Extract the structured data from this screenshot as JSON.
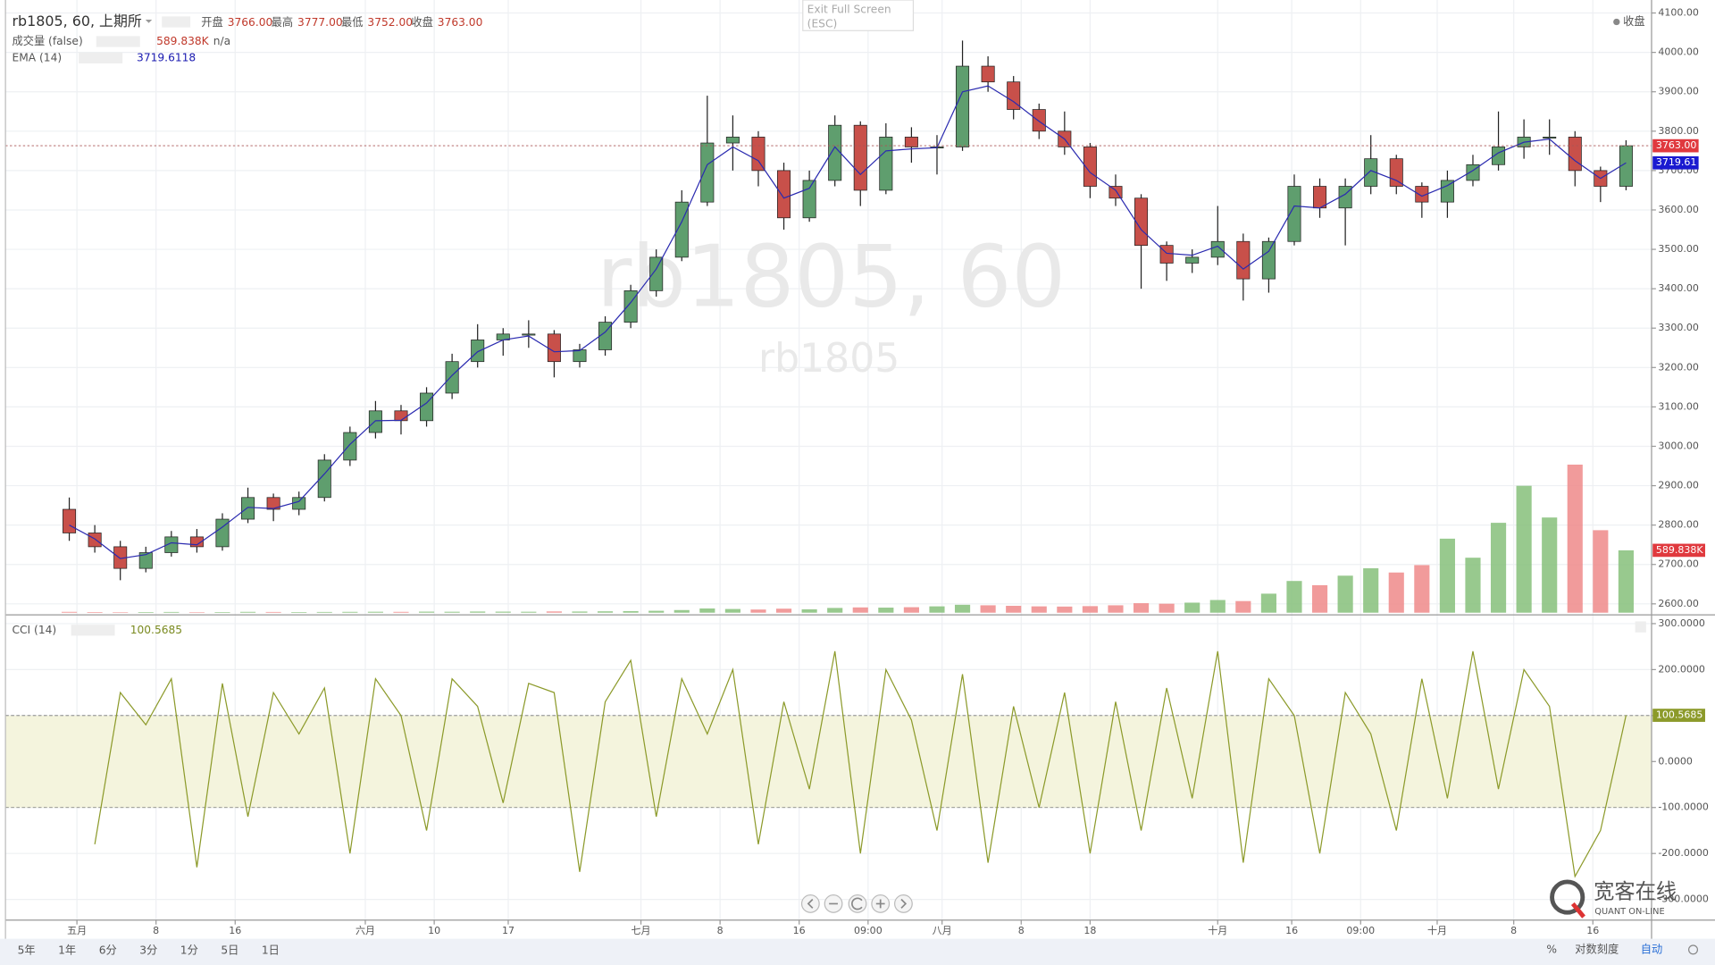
{
  "header": {
    "symbol": "rb1805, 60, 上期所",
    "ohlc": [
      [
        "开盘",
        "3766.00"
      ],
      [
        "最高",
        "3777.00"
      ],
      [
        "最低",
        "3752.00"
      ],
      [
        "收盘",
        "3763.00"
      ]
    ],
    "volume_title": "成交量 (false)",
    "volume_value": "589.838K",
    "volume_extra": "n/a",
    "ema_title": "EMA (14)",
    "ema_value": "3719.6118",
    "cci_title": "CCI (14)",
    "cci_value": "100.5685",
    "exit_fullscreen": "Exit Full Screen",
    "exit_key": "(ESC)",
    "close_toggle": "收盘",
    "watermark": "rb1805, 60",
    "watermark_sub": "rb1805"
  },
  "toolbar": {
    "ranges": [
      "5年",
      "1年",
      "6分",
      "3分",
      "1分",
      "5日",
      "1日"
    ],
    "percent": "%",
    "log": "对数刻度",
    "auto": "自动"
  },
  "logo": {
    "name": "宽客在线",
    "sub": "QUANT ON-LINE"
  },
  "chart_data": {
    "type": "candlestick",
    "up_color": "#5f9e6e",
    "down_color": "#c8504a",
    "xlim": [
      -2.5,
      62
    ],
    "ylim": [
      2572,
      4133
    ],
    "grid": true,
    "x": [
      0,
      1,
      2,
      3,
      4,
      5,
      6,
      7,
      8,
      9,
      10,
      11,
      12,
      13,
      14,
      15,
      16,
      17,
      18,
      19,
      20,
      21,
      22,
      23,
      24,
      25,
      26,
      27,
      28,
      29,
      30,
      31,
      32,
      33,
      34,
      35,
      36,
      37,
      38,
      39,
      40,
      41,
      42,
      43,
      44,
      45,
      46,
      47,
      48,
      49,
      50,
      51,
      52,
      53,
      54,
      55,
      56,
      57,
      58,
      59,
      60,
      61
    ],
    "xticks": [
      {
        "value": 0.3,
        "label": "五月"
      },
      {
        "value": 3.4,
        "label": "8"
      },
      {
        "value": 6.5,
        "label": "16"
      },
      {
        "value": 11.6,
        "label": "六月"
      },
      {
        "value": 14.3,
        "label": "10"
      },
      {
        "value": 17.2,
        "label": "17"
      },
      {
        "value": 22.4,
        "label": "七月"
      },
      {
        "value": 25.5,
        "label": "8"
      },
      {
        "value": 28.6,
        "label": "16"
      },
      {
        "value": 31.3,
        "label": "09:00"
      },
      {
        "value": 34.2,
        "label": "八月"
      },
      {
        "value": 37.3,
        "label": "8"
      },
      {
        "value": 40,
        "label": "18"
      },
      {
        "value": 45,
        "label": "十月"
      },
      {
        "value": 47.9,
        "label": "16"
      },
      {
        "value": 50.6,
        "label": "09:00"
      },
      {
        "value": 53.6,
        "label": "十月"
      },
      {
        "value": 56.6,
        "label": "8"
      },
      {
        "value": 59.7,
        "label": "16"
      }
    ],
    "yticks": [
      {
        "value": 2600,
        "label": "2600.00"
      },
      {
        "value": 2700,
        "label": "2700.00"
      },
      {
        "value": 2800,
        "label": "2800.00"
      },
      {
        "value": 2900,
        "label": "2900.00"
      },
      {
        "value": 3000,
        "label": "3000.00"
      },
      {
        "value": 3100,
        "label": "3100.00"
      },
      {
        "value": 3200,
        "label": "3200.00"
      },
      {
        "value": 3300,
        "label": "3300.00"
      },
      {
        "value": 3400,
        "label": "3400.00"
      },
      {
        "value": 3500,
        "label": "3500.00"
      },
      {
        "value": 3600,
        "label": "3600.00"
      },
      {
        "value": 3700,
        "label": "3700.00"
      },
      {
        "value": 3800,
        "label": "3800.00"
      },
      {
        "value": 3900,
        "label": "3900.00"
      },
      {
        "value": 4000,
        "label": "4000.00"
      },
      {
        "value": 4100,
        "label": "4100.00"
      }
    ],
    "candles": [
      [
        2840,
        2870,
        2760,
        2780
      ],
      [
        2780,
        2800,
        2730,
        2745
      ],
      [
        2745,
        2760,
        2660,
        2690
      ],
      [
        2690,
        2745,
        2680,
        2730
      ],
      [
        2730,
        2785,
        2720,
        2770
      ],
      [
        2770,
        2790,
        2730,
        2745
      ],
      [
        2745,
        2830,
        2735,
        2815
      ],
      [
        2815,
        2895,
        2805,
        2870
      ],
      [
        2870,
        2880,
        2810,
        2840
      ],
      [
        2840,
        2885,
        2825,
        2870
      ],
      [
        2870,
        2980,
        2860,
        2965
      ],
      [
        2965,
        3050,
        2950,
        3035
      ],
      [
        3035,
        3115,
        3020,
        3090
      ],
      [
        3090,
        3105,
        3030,
        3065
      ],
      [
        3065,
        3150,
        3050,
        3135
      ],
      [
        3135,
        3235,
        3120,
        3215
      ],
      [
        3215,
        3310,
        3200,
        3270
      ],
      [
        3270,
        3300,
        3230,
        3285
      ],
      [
        3285,
        3320,
        3250,
        3285
      ],
      [
        3285,
        3295,
        3175,
        3215
      ],
      [
        3215,
        3260,
        3200,
        3245
      ],
      [
        3245,
        3330,
        3230,
        3315
      ],
      [
        3315,
        3410,
        3300,
        3395
      ],
      [
        3395,
        3500,
        3380,
        3480
      ],
      [
        3480,
        3650,
        3470,
        3620
      ],
      [
        3620,
        3890,
        3610,
        3770
      ],
      [
        3770,
        3840,
        3700,
        3785
      ],
      [
        3785,
        3800,
        3660,
        3700
      ],
      [
        3700,
        3720,
        3550,
        3580
      ],
      [
        3580,
        3700,
        3570,
        3675
      ],
      [
        3675,
        3840,
        3660,
        3815
      ],
      [
        3815,
        3825,
        3610,
        3650
      ],
      [
        3650,
        3820,
        3640,
        3785
      ],
      [
        3785,
        3810,
        3720,
        3760
      ],
      [
        3760,
        3790,
        3690,
        3760
      ],
      [
        3760,
        4030,
        3750,
        3965
      ],
      [
        3965,
        3990,
        3900,
        3925
      ],
      [
        3925,
        3940,
        3830,
        3855
      ],
      [
        3855,
        3870,
        3780,
        3800
      ],
      [
        3800,
        3850,
        3740,
        3760
      ],
      [
        3760,
        3770,
        3630,
        3660
      ],
      [
        3660,
        3690,
        3610,
        3630
      ],
      [
        3630,
        3640,
        3400,
        3510
      ],
      [
        3510,
        3520,
        3420,
        3465
      ],
      [
        3465,
        3500,
        3440,
        3480
      ],
      [
        3480,
        3610,
        3460,
        3520
      ],
      [
        3520,
        3540,
        3370,
        3425
      ],
      [
        3425,
        3530,
        3390,
        3520
      ],
      [
        3520,
        3690,
        3510,
        3660
      ],
      [
        3660,
        3680,
        3580,
        3605
      ],
      [
        3605,
        3680,
        3510,
        3660
      ],
      [
        3660,
        3790,
        3640,
        3730
      ],
      [
        3730,
        3740,
        3640,
        3660
      ],
      [
        3660,
        3670,
        3580,
        3620
      ],
      [
        3620,
        3700,
        3580,
        3675
      ],
      [
        3675,
        3740,
        3660,
        3715
      ],
      [
        3715,
        3850,
        3700,
        3760
      ],
      [
        3760,
        3830,
        3730,
        3785
      ],
      [
        3785,
        3830,
        3740,
        3785
      ],
      [
        3785,
        3800,
        3660,
        3700
      ],
      [
        3700,
        3710,
        3620,
        3660
      ],
      [
        3660,
        3777,
        3650,
        3763
      ]
    ],
    "ema": {
      "color": "#2b2bb0",
      "values": [
        2800,
        2765,
        2715,
        2725,
        2755,
        2750,
        2795,
        2845,
        2842,
        2860,
        2930,
        3005,
        3065,
        3066,
        3110,
        3180,
        3240,
        3270,
        3280,
        3240,
        3243,
        3290,
        3365,
        3450,
        3570,
        3715,
        3760,
        3725,
        3630,
        3655,
        3760,
        3690,
        3750,
        3755,
        3758,
        3900,
        3915,
        3875,
        3825,
        3780,
        3695,
        3650,
        3550,
        3490,
        3485,
        3508,
        3450,
        3495,
        3610,
        3605,
        3640,
        3700,
        3675,
        3635,
        3662,
        3700,
        3745,
        3772,
        3780,
        3725,
        3680,
        3719.6118
      ]
    },
    "price_markers": [
      {
        "value": 3763,
        "label": "3763.00",
        "color": "#e0393e"
      },
      {
        "value": 3719.6118,
        "label": "3719.61",
        "color": "#1a1ad0"
      }
    ],
    "volume": {
      "vlim": [
        0,
        1500
      ],
      "up_color": "#86c07a",
      "down_color": "#ef8a8a",
      "values": [
        8,
        6,
        5,
        6,
        7,
        5,
        6,
        8,
        7,
        6,
        7,
        8,
        9,
        8,
        10,
        9,
        11,
        10,
        9,
        12,
        11,
        13,
        15,
        18,
        25,
        40,
        35,
        30,
        38,
        32,
        45,
        50,
        48,
        52,
        60,
        75,
        70,
        65,
        60,
        58,
        62,
        70,
        90,
        85,
        95,
        120,
        110,
        180,
        300,
        260,
        350,
        420,
        380,
        450,
        700,
        520,
        850,
        1200,
        900,
        1400,
        780,
        589.838
      ],
      "marker": {
        "value": 589.838,
        "label": "589.838K",
        "color": "#e0393e"
      }
    },
    "cci": {
      "color": "#8c9a2a",
      "band_fill": "#f4f4dd",
      "ylim": [
        -345,
        319
      ],
      "bands": [
        100,
        -100
      ],
      "yticks": [
        {
          "value": 300,
          "label": "300.0000"
        },
        {
          "value": 200,
          "label": "200.0000"
        },
        {
          "value": 100,
          "label": "100.0000"
        },
        {
          "value": 0,
          "label": "0.0000"
        },
        {
          "value": -100,
          "label": "-100.0000"
        },
        {
          "value": -200,
          "label": "-200.0000"
        },
        {
          "value": -300,
          "label": "-300.0000"
        }
      ],
      "values": [
        null,
        -180,
        150,
        80,
        180,
        -230,
        170,
        -120,
        150,
        60,
        160,
        -200,
        180,
        100,
        -150,
        180,
        120,
        -90,
        170,
        150,
        -240,
        130,
        220,
        -120,
        180,
        60,
        200,
        -180,
        130,
        -60,
        240,
        -200,
        200,
        90,
        -150,
        190,
        -220,
        120,
        -100,
        150,
        -200,
        130,
        -150,
        160,
        -80,
        240,
        -220,
        180,
        100,
        -200,
        150,
        60,
        -150,
        180,
        -80,
        240,
        -60,
        200,
        120,
        -250,
        -150,
        100.5685
      ],
      "marker": {
        "value": 100.5685,
        "label": "100.5685",
        "color": "#8c9a2a"
      }
    }
  }
}
